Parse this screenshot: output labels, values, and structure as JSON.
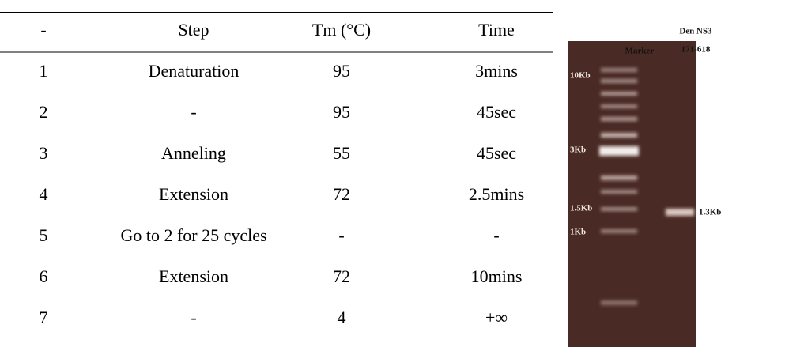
{
  "table": {
    "header": [
      "-",
      "Step",
      "Tm (°C)",
      "Time"
    ],
    "rows": [
      [
        "1",
        "Denaturation",
        "95",
        "3mins"
      ],
      [
        "2",
        "-",
        "95",
        "45sec"
      ],
      [
        "3",
        "Anneling",
        "55",
        "45sec"
      ],
      [
        "4",
        "Extension",
        "72",
        "2.5mins"
      ],
      [
        "5",
        "Go to 2 for 25 cycles",
        "-",
        "-"
      ],
      [
        "6",
        "Extension",
        "72",
        "10mins"
      ],
      [
        "7",
        "-",
        "4",
        "+∞"
      ]
    ]
  },
  "gel": {
    "lane_labels": [
      "Marker",
      "Den NS3",
      "171-618"
    ],
    "size_labels": [
      "10Kb",
      "3Kb",
      "1.5Kb",
      "1Kb"
    ],
    "band_label": "1.3Kb"
  }
}
